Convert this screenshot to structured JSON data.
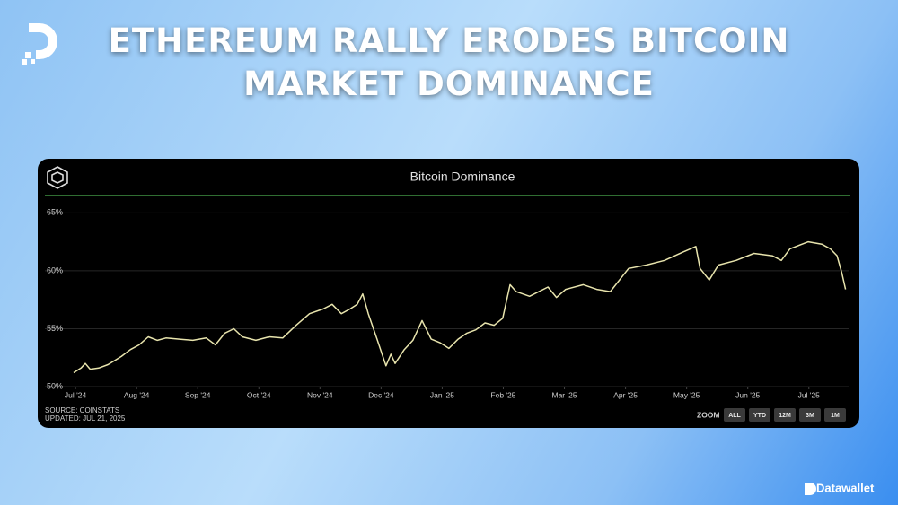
{
  "header": {
    "title_lines": [
      "ETHEREUM RALLY ERODES BITCOIN",
      "MARKET DOMINANCE"
    ]
  },
  "chart_data": {
    "type": "line",
    "title": "Bitcoin Dominance",
    "x": [
      -0.03,
      0.09,
      0.16,
      0.24,
      0.38,
      0.53,
      0.75,
      0.9,
      1.04,
      1.19,
      1.34,
      1.48,
      1.7,
      1.92,
      2.14,
      2.29,
      2.44,
      2.59,
      2.73,
      2.95,
      3.17,
      3.39,
      3.61,
      3.83,
      4.05,
      4.2,
      4.35,
      4.49,
      4.61,
      4.7,
      4.79,
      4.94,
      5.08,
      5.16,
      5.23,
      5.38,
      5.52,
      5.67,
      5.82,
      5.96,
      6.11,
      6.26,
      6.4,
      6.55,
      6.7,
      6.85,
      6.99,
      7.11,
      7.21,
      7.43,
      7.73,
      7.87,
      8.02,
      8.31,
      8.53,
      8.75,
      9.05,
      9.34,
      9.64,
      9.93,
      10.15,
      10.22,
      10.37,
      10.52,
      10.81,
      11.1,
      11.4,
      11.55,
      11.69,
      11.99,
      12.21,
      12.35,
      12.46,
      12.54,
      12.6
    ],
    "series": [
      {
        "name": "Bitcoin Dominance",
        "color": "#e8e4ad",
        "values": [
          51.2,
          51.6,
          52.0,
          51.5,
          51.6,
          51.9,
          52.6,
          53.2,
          53.6,
          54.3,
          54.0,
          54.2,
          54.1,
          54.0,
          54.2,
          53.6,
          54.6,
          55.0,
          54.3,
          54.0,
          54.3,
          54.2,
          55.3,
          56.3,
          56.7,
          57.1,
          56.3,
          56.7,
          57.1,
          58.0,
          56.3,
          54.0,
          51.8,
          52.8,
          52.0,
          53.2,
          54.0,
          55.7,
          54.1,
          53.8,
          53.3,
          54.1,
          54.6,
          54.9,
          55.5,
          55.3,
          55.9,
          58.8,
          58.2,
          57.8,
          58.6,
          57.7,
          58.4,
          58.8,
          58.4,
          58.2,
          60.2,
          60.5,
          60.9,
          61.6,
          62.1,
          60.2,
          59.2,
          60.5,
          60.9,
          61.5,
          61.3,
          60.9,
          61.9,
          62.5,
          62.3,
          61.9,
          61.3,
          59.8,
          58.4
        ]
      }
    ],
    "xlim": [
      -0.06,
      12.65
    ],
    "xticks": [
      {
        "value": 0,
        "label": "Jul '24"
      },
      {
        "value": 1,
        "label": "Aug '24"
      },
      {
        "value": 2,
        "label": "Sep '24"
      },
      {
        "value": 3,
        "label": "Oct '24"
      },
      {
        "value": 4,
        "label": "Nov '24"
      },
      {
        "value": 5,
        "label": "Dec '24"
      },
      {
        "value": 6,
        "label": "Jan '25"
      },
      {
        "value": 7,
        "label": "Feb '25"
      },
      {
        "value": 8,
        "label": "Mar '25"
      },
      {
        "value": 9,
        "label": "Apr '25"
      },
      {
        "value": 10,
        "label": "May '25"
      },
      {
        "value": 11,
        "label": "Jun '25"
      },
      {
        "value": 12,
        "label": "Jul '25"
      }
    ],
    "ylim": [
      50,
      66.5
    ],
    "yticks": [
      {
        "value": 50,
        "label": "50%"
      },
      {
        "value": 55,
        "label": "55%"
      },
      {
        "value": 60,
        "label": "60%"
      },
      {
        "value": 65,
        "label": "65%"
      }
    ],
    "grid": true,
    "source": "SOURCE: COINSTATS",
    "updated": "UPDATED: JUL 21, 2025",
    "zoom_label": "ZOOM",
    "zoom_options": [
      "ALL",
      "YTD",
      "12M",
      "3M",
      "1M"
    ]
  },
  "footer": {
    "brand": "Datawallet"
  }
}
